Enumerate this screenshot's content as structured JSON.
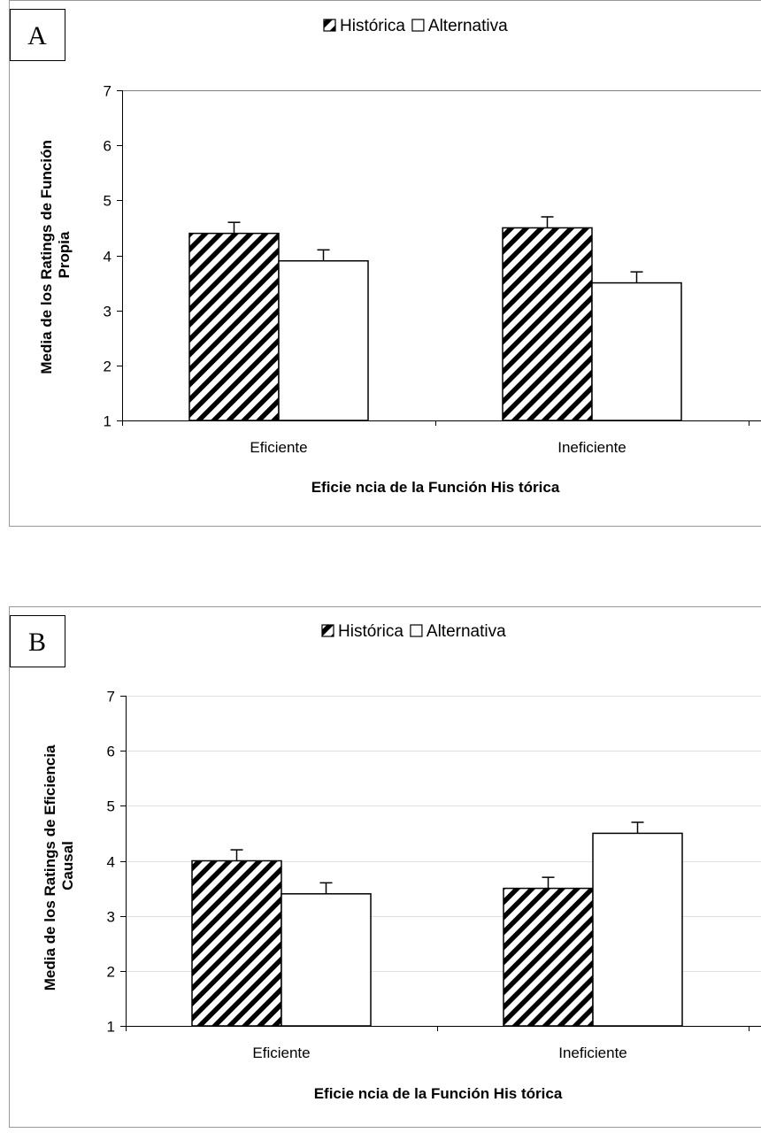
{
  "chart_data": [
    {
      "type": "bar",
      "panel_label": "A",
      "categories": [
        "Eficiente",
        "Ineficiente"
      ],
      "series": [
        {
          "name": "Histórica",
          "values": [
            4.4,
            4.5
          ],
          "errors": [
            0.2,
            0.2
          ],
          "pattern": "hatch"
        },
        {
          "name": "Alternativa",
          "values": [
            3.9,
            3.5
          ],
          "errors": [
            0.2,
            0.2
          ],
          "pattern": "white"
        }
      ],
      "ylim": [
        1,
        7
      ],
      "yticks": [
        1,
        2,
        3,
        4,
        5,
        6,
        7
      ],
      "xlabel": "Eficie ncia de la Función His tórica",
      "ylabel_lines": [
        "Media de los Ratings de Función",
        "Propia"
      ],
      "legend_placement": "top-center",
      "grid": false
    },
    {
      "type": "bar",
      "panel_label": "B",
      "categories": [
        "Eficiente",
        "Ineficiente"
      ],
      "series": [
        {
          "name": "Histórica",
          "values": [
            4.0,
            3.5
          ],
          "errors": [
            0.2,
            0.2
          ],
          "pattern": "hatch"
        },
        {
          "name": "Alternativa",
          "values": [
            3.4,
            4.5
          ],
          "errors": [
            0.2,
            0.2
          ],
          "pattern": "white"
        }
      ],
      "ylim": [
        1,
        7
      ],
      "yticks": [
        1,
        2,
        3,
        4,
        5,
        6,
        7
      ],
      "xlabel": "Eficie ncia de la Función His tórica",
      "ylabel_lines": [
        "Media de los Ratings de Eficiencia",
        "Causal"
      ],
      "legend_placement": "top-center",
      "grid": true
    }
  ]
}
